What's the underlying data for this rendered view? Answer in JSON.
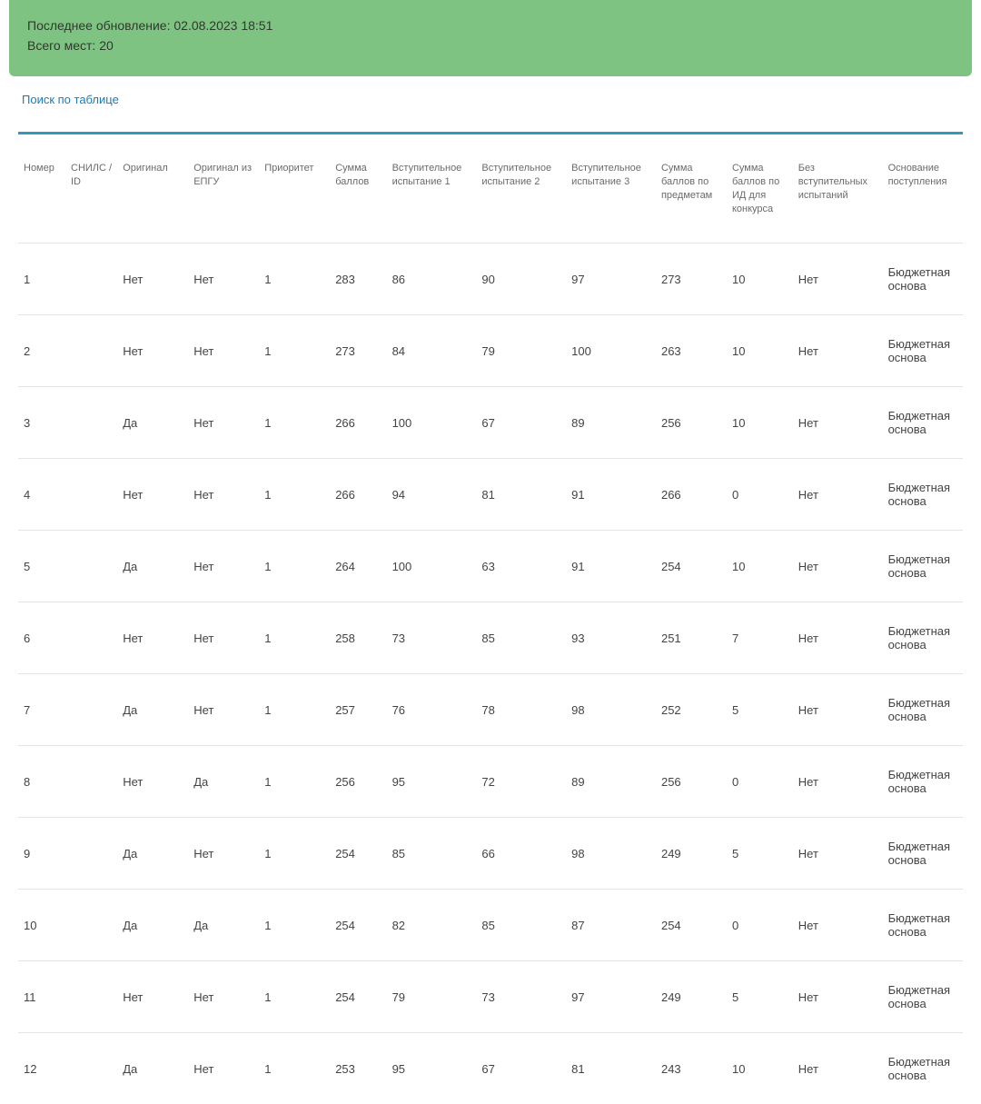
{
  "banner": {
    "last_update": "Последнее обновление: 02.08.2023 18:51",
    "total_places": "Всего мест: 20"
  },
  "search_link": "Поиск по таблице",
  "columns": [
    "Номер",
    "СНИЛС / ID",
    "Оригинал",
    "Оригинал из ЕПГУ",
    "Приоритет",
    "Сумма баллов",
    "Вступительное испытание 1",
    "Вступительное испытание 2",
    "Вступительное испытание 3",
    "Сумма баллов по предметам",
    "Сумма баллов по ИД для конкурса",
    "Без вступительных испытаний",
    "Основание поступления"
  ],
  "rows": [
    {
      "n": "1",
      "snils": "",
      "orig": "Нет",
      "epgu": "Нет",
      "prio": "1",
      "sum": "283",
      "e1": "86",
      "e2": "90",
      "e3": "97",
      "subj": "273",
      "id": "10",
      "bez": "Нет",
      "osn": "Бюджетная основа"
    },
    {
      "n": "2",
      "snils": "",
      "orig": "Нет",
      "epgu": "Нет",
      "prio": "1",
      "sum": "273",
      "e1": "84",
      "e2": "79",
      "e3": "100",
      "subj": "263",
      "id": "10",
      "bez": "Нет",
      "osn": "Бюджетная основа"
    },
    {
      "n": "3",
      "snils": "",
      "orig": "Да",
      "epgu": "Нет",
      "prio": "1",
      "sum": "266",
      "e1": "100",
      "e2": "67",
      "e3": "89",
      "subj": "256",
      "id": "10",
      "bez": "Нет",
      "osn": "Бюджетная основа"
    },
    {
      "n": "4",
      "snils": "",
      "orig": "Нет",
      "epgu": "Нет",
      "prio": "1",
      "sum": "266",
      "e1": "94",
      "e2": "81",
      "e3": "91",
      "subj": "266",
      "id": "0",
      "bez": "Нет",
      "osn": "Бюджетная основа"
    },
    {
      "n": "5",
      "snils": "",
      "orig": "Да",
      "epgu": "Нет",
      "prio": "1",
      "sum": "264",
      "e1": "100",
      "e2": "63",
      "e3": "91",
      "subj": "254",
      "id": "10",
      "bez": "Нет",
      "osn": "Бюджетная основа"
    },
    {
      "n": "6",
      "snils": "",
      "orig": "Нет",
      "epgu": "Нет",
      "prio": "1",
      "sum": "258",
      "e1": "73",
      "e2": "85",
      "e3": "93",
      "subj": "251",
      "id": "7",
      "bez": "Нет",
      "osn": "Бюджетная основа"
    },
    {
      "n": "7",
      "snils": "",
      "orig": "Да",
      "epgu": "Нет",
      "prio": "1",
      "sum": "257",
      "e1": "76",
      "e2": "78",
      "e3": "98",
      "subj": "252",
      "id": "5",
      "bez": "Нет",
      "osn": "Бюджетная основа"
    },
    {
      "n": "8",
      "snils": "",
      "orig": "Нет",
      "epgu": "Да",
      "prio": "1",
      "sum": "256",
      "e1": "95",
      "e2": "72",
      "e3": "89",
      "subj": "256",
      "id": "0",
      "bez": "Нет",
      "osn": "Бюджетная основа"
    },
    {
      "n": "9",
      "snils": "",
      "orig": "Да",
      "epgu": "Нет",
      "prio": "1",
      "sum": "254",
      "e1": "85",
      "e2": "66",
      "e3": "98",
      "subj": "249",
      "id": "5",
      "bez": "Нет",
      "osn": "Бюджетная основа"
    },
    {
      "n": "10",
      "snils": "",
      "orig": "Да",
      "epgu": "Да",
      "prio": "1",
      "sum": "254",
      "e1": "82",
      "e2": "85",
      "e3": "87",
      "subj": "254",
      "id": "0",
      "bez": "Нет",
      "osn": "Бюджетная основа"
    },
    {
      "n": "11",
      "snils": "",
      "orig": "Нет",
      "epgu": "Нет",
      "prio": "1",
      "sum": "254",
      "e1": "79",
      "e2": "73",
      "e3": "97",
      "subj": "249",
      "id": "5",
      "bez": "Нет",
      "osn": "Бюджетная основа"
    },
    {
      "n": "12",
      "snils": "",
      "orig": "Да",
      "epgu": "Нет",
      "prio": "1",
      "sum": "253",
      "e1": "95",
      "e2": "67",
      "e3": "81",
      "subj": "243",
      "id": "10",
      "bez": "Нет",
      "osn": "Бюджетная основа"
    }
  ],
  "colors": {
    "banner_bg": "#7ec381",
    "link": "#1a7bb8",
    "divider": "#3498b8",
    "header_text": "#6b6b6b",
    "cell_text": "#444444",
    "row_border": "#e4e4e4"
  }
}
